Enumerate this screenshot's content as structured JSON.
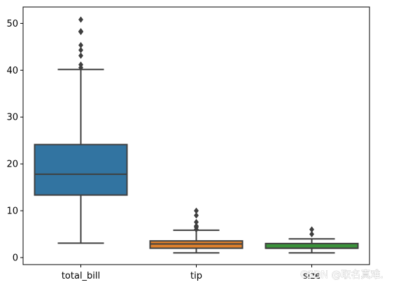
{
  "chart_data": {
    "type": "box",
    "categories": [
      "total_bill",
      "tip",
      "size"
    ],
    "ylim": [
      -1.5,
      53.5
    ],
    "y_ticks": [
      0,
      10,
      20,
      30,
      40,
      50
    ],
    "grid": false,
    "boxes": [
      {
        "name": "total_bill",
        "color": "#3274a1",
        "whisker_low": 3.07,
        "q1": 13.35,
        "median": 17.8,
        "q3": 24.13,
        "whisker_high": 40.17,
        "outliers": [
          40.55,
          41.19,
          43.11,
          44.3,
          45.35,
          48.17,
          48.27,
          48.33,
          50.81
        ]
      },
      {
        "name": "tip",
        "color": "#e1812c",
        "whisker_low": 1.0,
        "q1": 2.0,
        "median": 2.9,
        "q3": 3.56,
        "whisker_high": 5.85,
        "outliers": [
          6.0,
          6.5,
          6.7,
          6.73,
          7.58,
          9.0,
          10.0
        ]
      },
      {
        "name": "size",
        "color": "#3a923a",
        "whisker_low": 1,
        "q1": 2,
        "median": 2,
        "q3": 3,
        "whisker_high": 4,
        "outliers": [
          5,
          6
        ]
      }
    ]
  },
  "watermark": "CSDN @取名真难."
}
